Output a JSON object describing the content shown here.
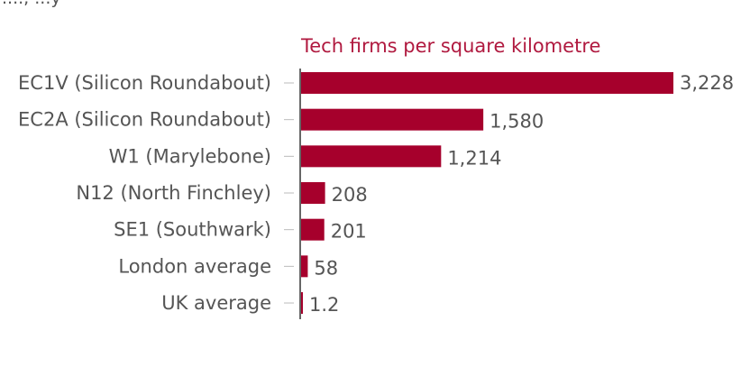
{
  "header_fragment": "...., ...y",
  "colors": {
    "bar": "#a6002c",
    "title": "#b0193f",
    "text": "#555555",
    "axis": "#333333",
    "tick": "#bbbbbb"
  },
  "chart_data": {
    "type": "bar",
    "orientation": "horizontal",
    "title": "Tech firms per square kilometre",
    "xlabel": "",
    "ylabel": "",
    "categories": [
      "EC1V (Silicon Roundabout)",
      "EC2A (Silicon Roundabout)",
      "W1 (Marylebone)",
      "N12 (North Finchley)",
      "SE1 (Southwark)",
      "London average",
      "UK average"
    ],
    "values": [
      3228,
      1580,
      1214,
      208,
      201,
      58,
      1.2
    ],
    "value_labels": [
      "3,228",
      "1,580",
      "1,214",
      "208",
      "201",
      "58",
      "1.2"
    ],
    "xlim": [
      0,
      3228
    ],
    "grid": false
  }
}
